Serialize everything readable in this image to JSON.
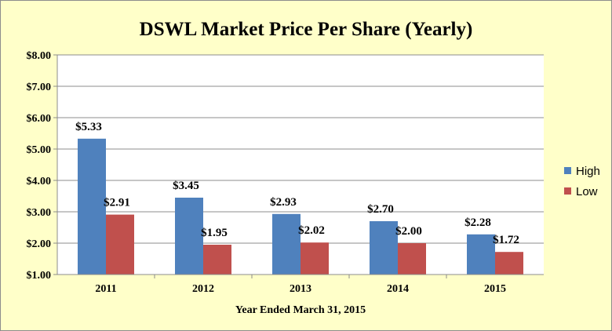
{
  "chart_data": {
    "type": "bar",
    "title": "DSWL Market Price Per Share (Yearly)",
    "xlabel": "Year Ended March 31, 2015",
    "ylabel": "",
    "categories": [
      "2011",
      "2012",
      "2013",
      "2014",
      "2015"
    ],
    "series": [
      {
        "name": "High",
        "color": "#4f81bd",
        "values": [
          5.33,
          3.45,
          2.93,
          2.7,
          2.28
        ],
        "labels": [
          "$5.33",
          "$3.45",
          "$2.93",
          "$2.70",
          "$2.28"
        ]
      },
      {
        "name": "Low",
        "color": "#c0504d",
        "values": [
          2.91,
          1.95,
          2.02,
          2.0,
          1.72
        ],
        "labels": [
          "$2.91",
          "$1.95",
          "$2.02",
          "$2.00",
          "$1.72"
        ]
      }
    ],
    "ylim": [
      1.0,
      8.0
    ],
    "yticks": [
      1,
      2,
      3,
      4,
      5,
      6,
      7,
      8
    ],
    "ytick_labels": [
      "$1.00",
      "$2.00",
      "$3.00",
      "$4.00",
      "$5.00",
      "$6.00",
      "$7.00",
      "$8.00"
    ],
    "grid": true,
    "legend_position": "right",
    "plot_background": "#ffffff",
    "chart_background": "#ffffc9"
  }
}
